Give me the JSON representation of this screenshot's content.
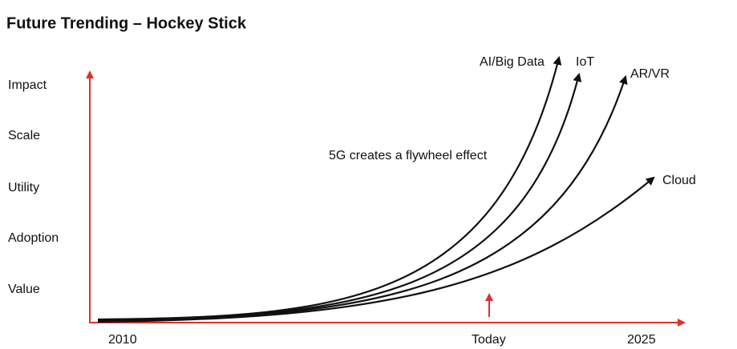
{
  "title": "Future Trending – Hockey Stick",
  "y_labels": [
    "Impact",
    "Scale",
    "Utility",
    "Adoption",
    "Value"
  ],
  "x_labels": [
    "2010",
    "Today",
    "2025"
  ],
  "curve_labels": [
    "AI/Big Data",
    "IoT",
    "AR/VR",
    "Cloud"
  ],
  "annotation": "5G creates a flywheel effect"
}
